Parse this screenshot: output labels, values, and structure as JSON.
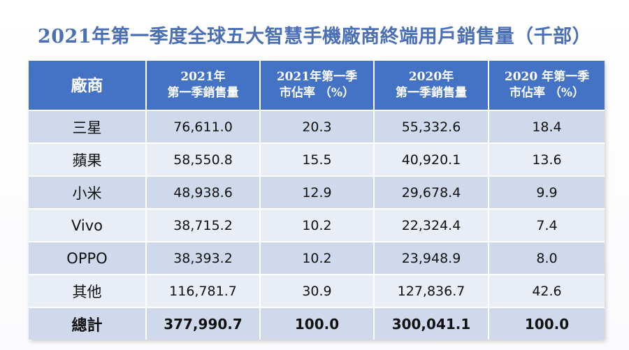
{
  "title": "2021年第一季度全球五大智慧手機廠商終端用戶銷售量（千部）",
  "chart_data": {
    "type": "table",
    "title": "2021年第一季度全球五大智慧手機廠商終端用戶銷售量（千部）",
    "columns": [
      {
        "line1": "廠商",
        "line2": ""
      },
      {
        "line1": "2021年",
        "line2": "第一季銷售量"
      },
      {
        "line1": "2021年第一季",
        "line2": "市佔率 （%）"
      },
      {
        "line1": "2020年",
        "line2": "第一季銷售量"
      },
      {
        "line1": "2020 年第一季",
        "line2": "市佔率 （%）"
      }
    ],
    "rows": [
      {
        "vendor": "三星",
        "sales_2021": "76,611.0",
        "share_2021": "20.3",
        "sales_2020": "55,332.6",
        "share_2020": "18.4"
      },
      {
        "vendor": "蘋果",
        "sales_2021": "58,550.8",
        "share_2021": "15.5",
        "sales_2020": "40,920.1",
        "share_2020": "13.6"
      },
      {
        "vendor": "小米",
        "sales_2021": "48,938.6",
        "share_2021": "12.9",
        "sales_2020": "29,678.4",
        "share_2020": "9.9"
      },
      {
        "vendor": "Vivo",
        "sales_2021": "38,715.2",
        "share_2021": "10.2",
        "sales_2020": "22,324.4",
        "share_2020": "7.4"
      },
      {
        "vendor": "OPPO",
        "sales_2021": "38,393.2",
        "share_2021": "10.2",
        "sales_2020": "23,948.9",
        "share_2020": "8.0"
      },
      {
        "vendor": "其他",
        "sales_2021": "116,781.7",
        "share_2021": "30.9",
        "sales_2020": "127,836.7",
        "share_2020": "42.6"
      }
    ],
    "total": {
      "vendor": "總計",
      "sales_2021": "377,990.7",
      "share_2021": "100.0",
      "sales_2020": "300,041.1",
      "share_2020": "100.0"
    }
  },
  "colors": {
    "title": "#4a6fb5",
    "header_bg": "#4472c4",
    "row_dark": "#d0d8ec",
    "row_light": "#e9edf6"
  }
}
